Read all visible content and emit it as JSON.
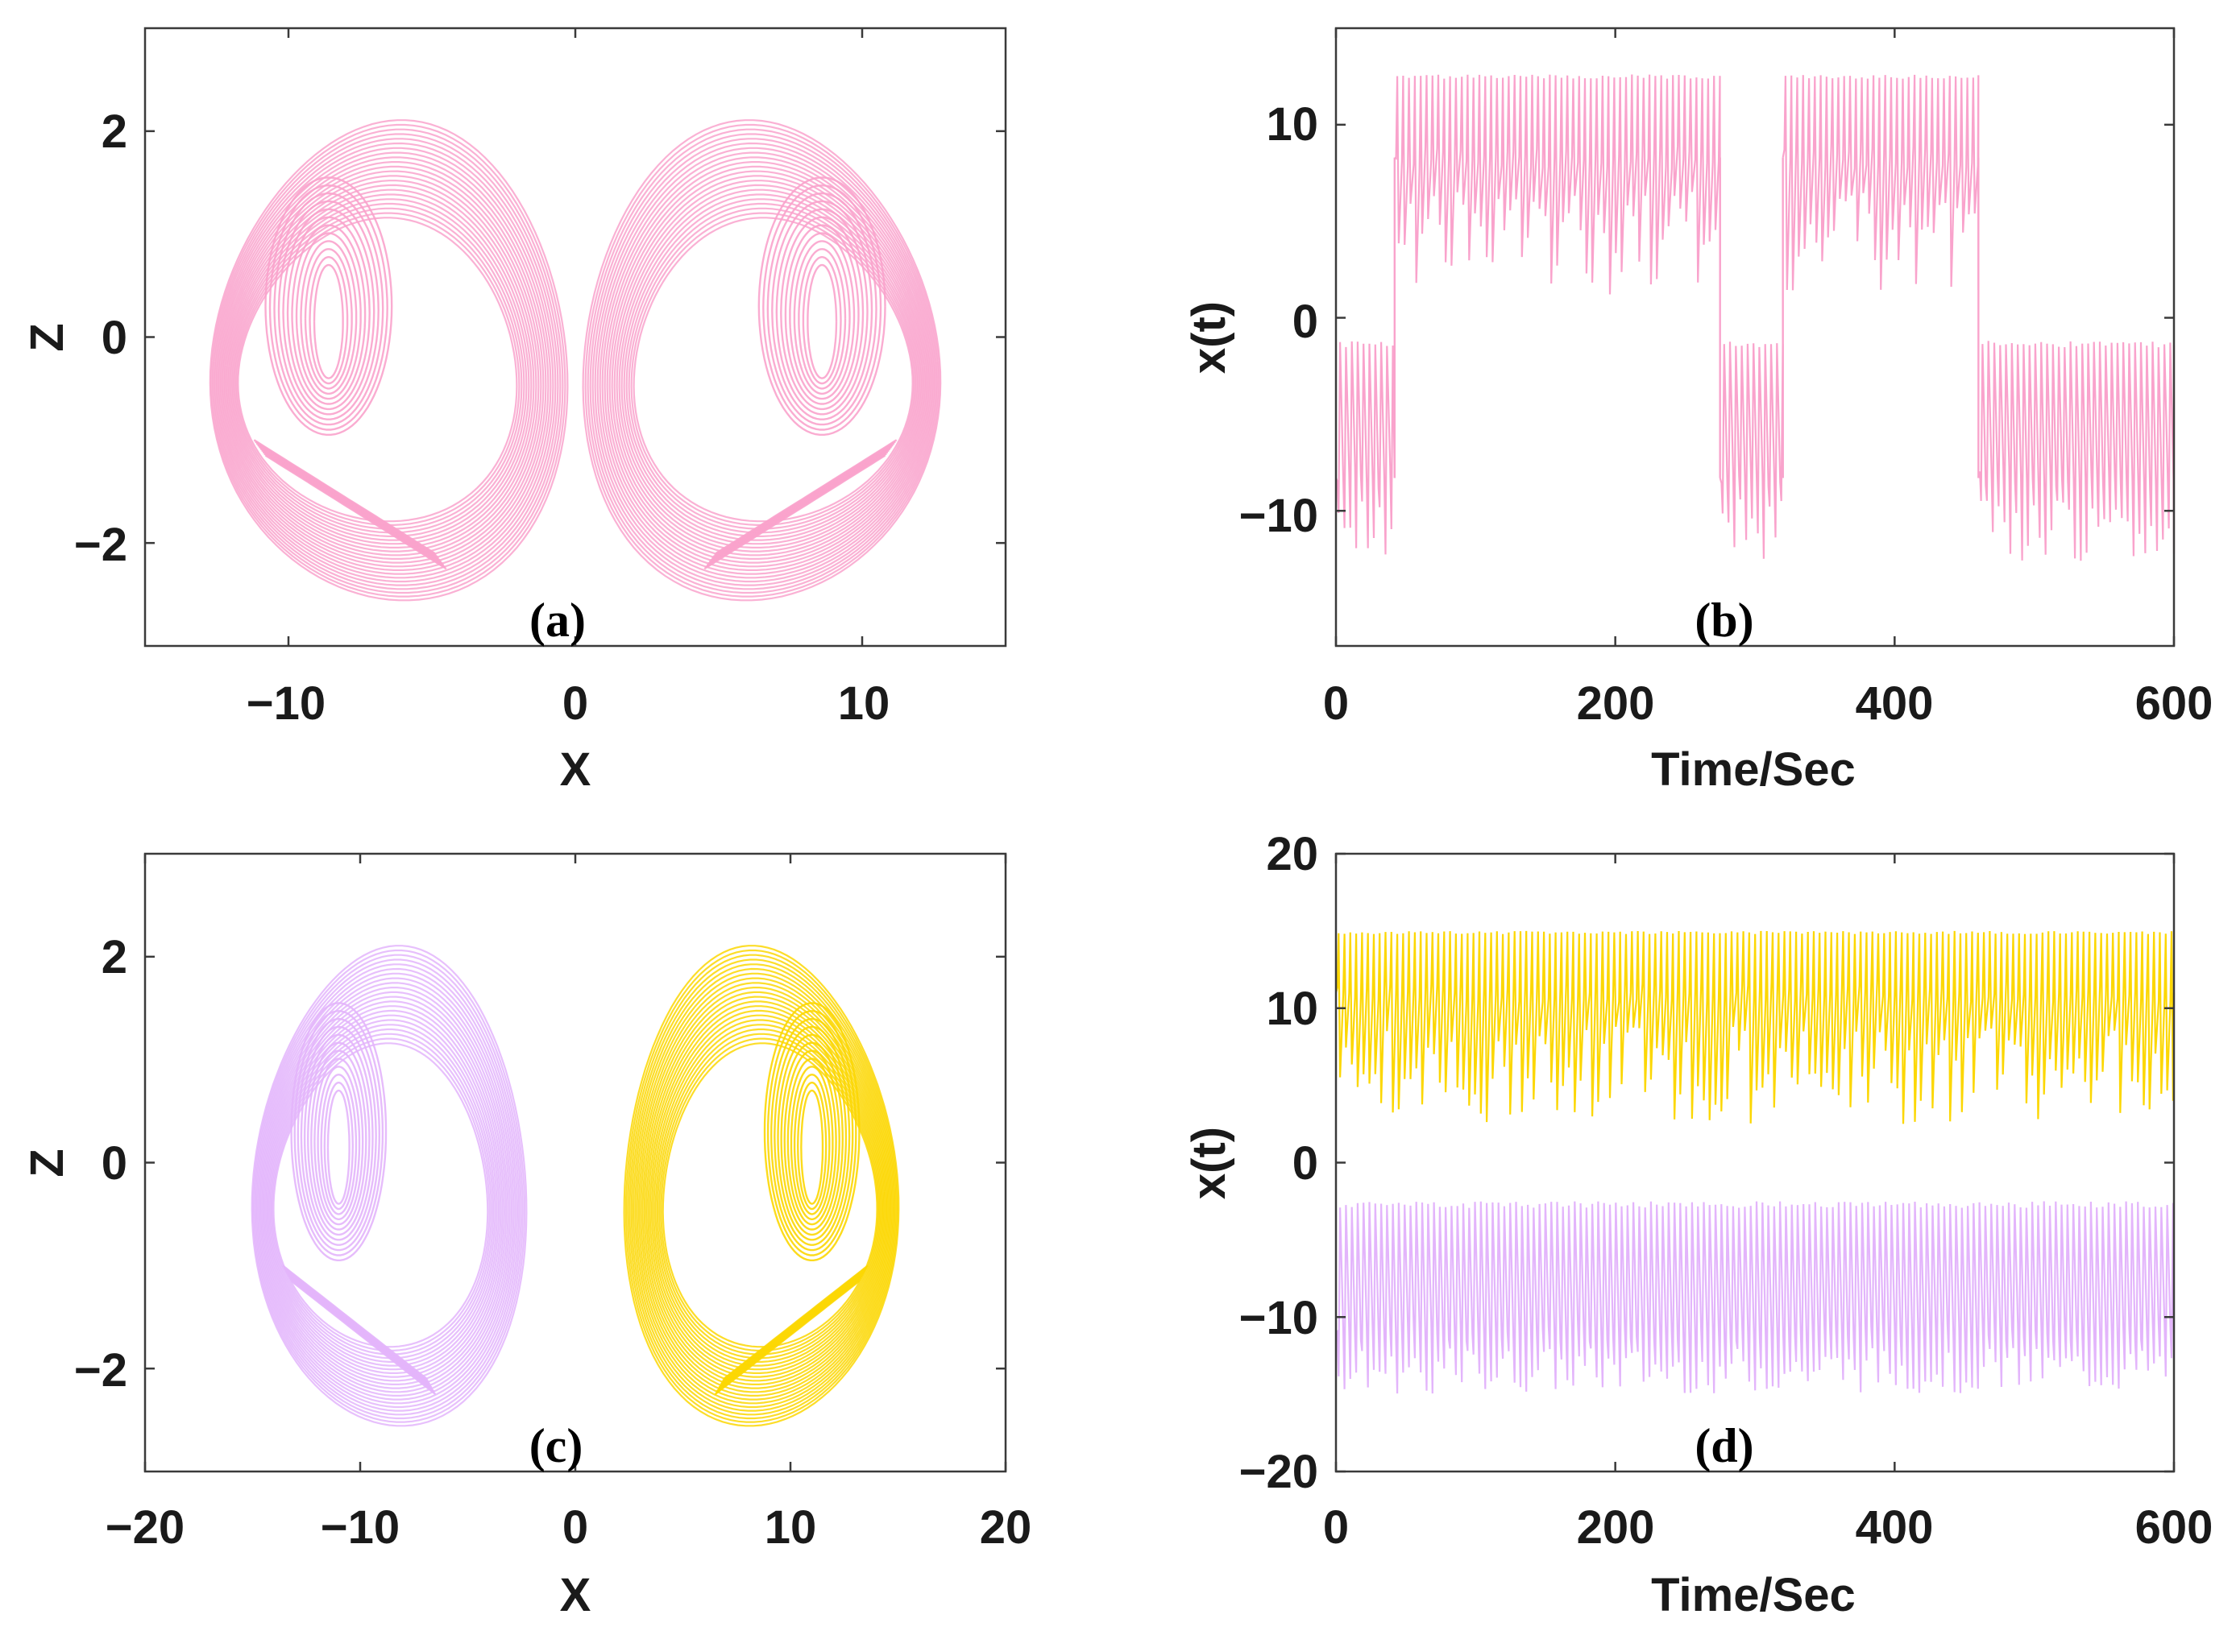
{
  "chart_data": [
    {
      "id": "a",
      "type": "line",
      "subtype": "phase-portrait",
      "panel_label": "(a)",
      "xlabel": "X",
      "ylabel": "Z",
      "xlim": [
        -15,
        15
      ],
      "ylim": [
        -3,
        3
      ],
      "xticks": [
        -10,
        0,
        10
      ],
      "xtick_labels": [
        "−10",
        "0",
        "10"
      ],
      "yticks": [
        -2,
        0,
        2
      ],
      "ytick_labels": [
        "−2",
        "0",
        "2"
      ],
      "series": [
        {
          "name": "double-scroll attractor",
          "color": "#f9a3cc",
          "x_range": [
            -12.7,
            12.7
          ],
          "z_range": [
            -2.55,
            2.1
          ],
          "scroll_centers_x": [
            -8.6,
            8.6
          ]
        }
      ]
    },
    {
      "id": "b",
      "type": "line",
      "subtype": "time-series",
      "panel_label": "(b)",
      "xlabel": "Time/Sec",
      "ylabel": "x(t)",
      "xlim": [
        0,
        600
      ],
      "ylim": [
        -17,
        15
      ],
      "xticks": [
        0,
        200,
        400,
        600
      ],
      "xtick_labels": [
        "0",
        "200",
        "400",
        "600"
      ],
      "yticks": [
        -10,
        0,
        10
      ],
      "ytick_labels": [
        "−10",
        "0",
        "10"
      ],
      "series": [
        {
          "name": "x(t)",
          "color": "#f9a3cc",
          "segments": [
            {
              "t_start": 0,
              "t_end": 42,
              "center": -8.3,
              "min": -12.6,
              "max": -1.2
            },
            {
              "t_start": 42,
              "t_end": 275,
              "center": 8.3,
              "min": 1.2,
              "max": 12.6
            },
            {
              "t_start": 275,
              "t_end": 320,
              "center": -8.3,
              "min": -12.6,
              "max": -1.2
            },
            {
              "t_start": 320,
              "t_end": 460,
              "center": 8.3,
              "min": 1.2,
              "max": 12.6
            },
            {
              "t_start": 460,
              "t_end": 600,
              "center": -8.3,
              "min": -12.6,
              "max": -1.2
            }
          ]
        }
      ]
    },
    {
      "id": "c",
      "type": "line",
      "subtype": "phase-portrait",
      "panel_label": "(c)",
      "xlabel": "X",
      "ylabel": "Z",
      "xlim": [
        -20,
        20
      ],
      "ylim": [
        -3,
        3
      ],
      "xticks": [
        -20,
        -10,
        0,
        10,
        20
      ],
      "xtick_labels": [
        "−20",
        "−10",
        "0",
        "10",
        "20"
      ],
      "yticks": [
        -2,
        0,
        2
      ],
      "ytick_labels": [
        "−2",
        "0",
        "2"
      ],
      "series": [
        {
          "name": "left attractor",
          "color": "#e3b5fb",
          "x_range": [
            -15,
            -2.3
          ],
          "z_range": [
            -2.55,
            2.1
          ],
          "scroll_center_x": -11
        },
        {
          "name": "right attractor",
          "color": "#fcd703",
          "x_range": [
            2.3,
            15
          ],
          "z_range": [
            -2.55,
            2.1
          ],
          "scroll_center_x": 11
        }
      ]
    },
    {
      "id": "d",
      "type": "line",
      "subtype": "time-series",
      "panel_label": "(d)",
      "xlabel": "Time/Sec",
      "ylabel": "x(t)",
      "xlim": [
        0,
        600
      ],
      "ylim": [
        -20,
        20
      ],
      "xticks": [
        0,
        200,
        400,
        600
      ],
      "xtick_labels": [
        "0",
        "200",
        "400",
        "600"
      ],
      "yticks": [
        -20,
        -10,
        0,
        10,
        20
      ],
      "ytick_labels": [
        "−20",
        "−10",
        "0",
        "10",
        "20"
      ],
      "series": [
        {
          "name": "x(t) upper",
          "color": "#fcd703",
          "center": 11,
          "min": 2.5,
          "max": 15
        },
        {
          "name": "x(t) lower",
          "color": "#e3b5fb",
          "center": -11,
          "min": -15,
          "max": -2.5
        }
      ]
    }
  ]
}
